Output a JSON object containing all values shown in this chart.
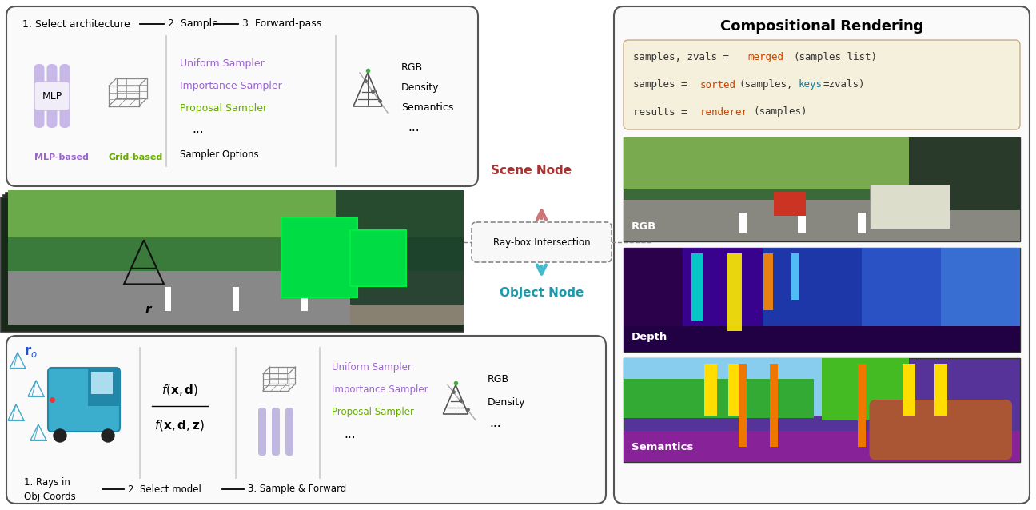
{
  "figsize": [
    12.96,
    6.38
  ],
  "dpi": 100,
  "bg_color": "#ffffff",
  "scene_node_color": "#a83232",
  "object_node_color": "#1a9aaa",
  "mlp_color": "#9966cc",
  "grid_color": "#66aa00",
  "uniform_sampler_color": "#9966cc",
  "importance_sampler_color": "#9966cc",
  "proposal_sampler_color": "#66aa00",
  "arrow_scene_color": "#cc7777",
  "arrow_object_color": "#44bbcc",
  "code_bg": "#f5f0dc",
  "code_border": "#ccaa88",
  "comp_title": "Compositional Rendering",
  "rgb_label": "RGB",
  "depth_label": "Depth",
  "semantics_label": "Semantics"
}
